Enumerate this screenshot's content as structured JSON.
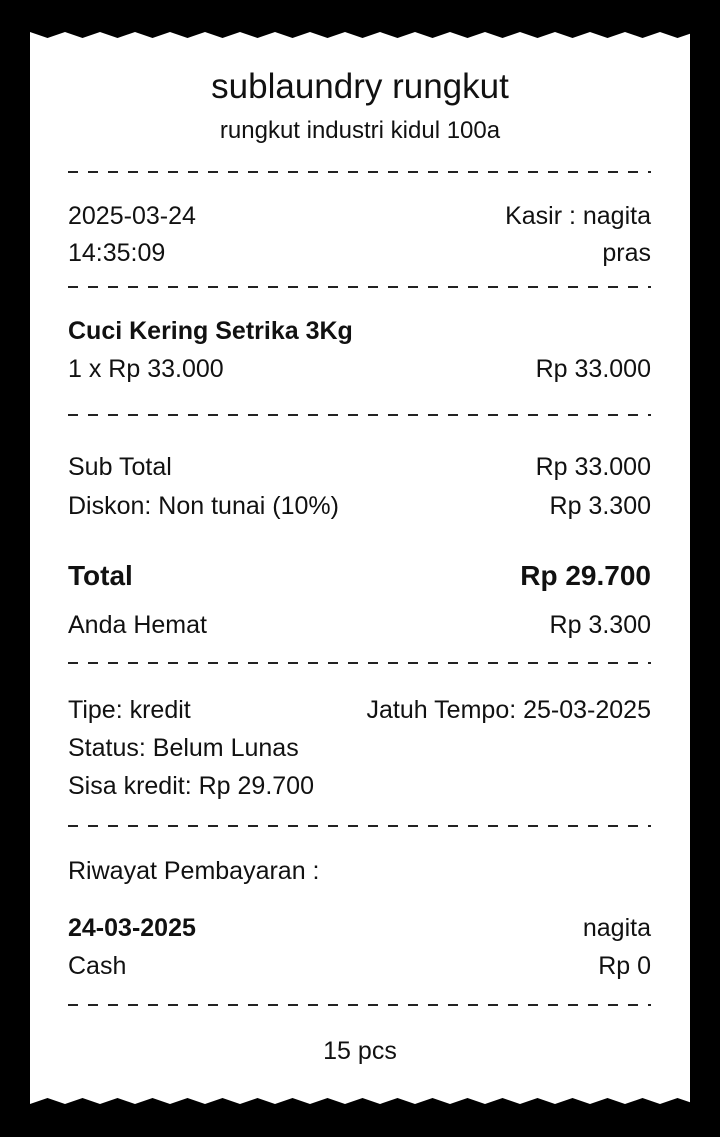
{
  "store": {
    "name": "sublaundry rungkut",
    "address": "rungkut industri kidul 100a"
  },
  "meta": {
    "date": "2025-03-24",
    "time": "14:35:09",
    "cashier": "Kasir : nagita",
    "customer": "pras"
  },
  "items": [
    {
      "name": "Cuci Kering Setrika 3Kg",
      "qty_price": "1 x Rp 33.000",
      "amount": "Rp 33.000"
    }
  ],
  "summary": {
    "subtotal_label": "Sub Total",
    "subtotal": "Rp 33.000",
    "discount_label": "Diskon: Non tunai (10%)",
    "discount": "Rp 3.300",
    "total_label": "Total",
    "total": "Rp 29.700",
    "saving_label": "Anda Hemat",
    "saving": "Rp 3.300"
  },
  "payment": {
    "type": "Tipe: kredit",
    "due": "Jatuh Tempo: 25-03-2025",
    "status": "Status: Belum Lunas",
    "remaining": "Sisa kredit: Rp 29.700"
  },
  "history": {
    "title": "Riwayat Pembayaran :",
    "entries": [
      {
        "date": "24-03-2025",
        "user": "nagita",
        "method": "Cash",
        "amount": "Rp 0"
      }
    ]
  },
  "footer": {
    "pieces": "15 pcs"
  }
}
